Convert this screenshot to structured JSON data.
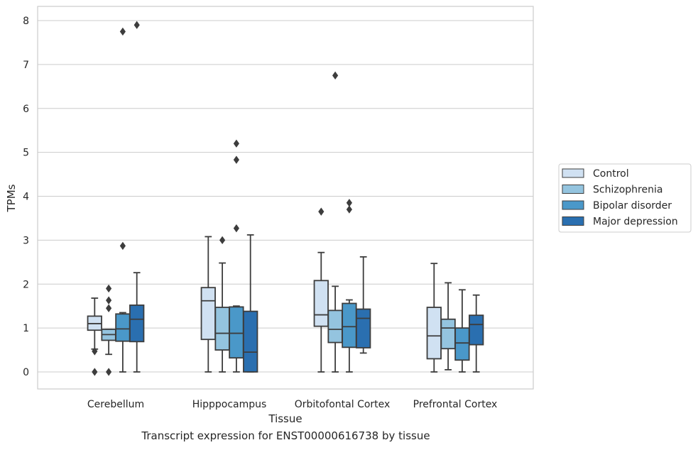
{
  "caption": "Transcript expression for ENST00000616738 by tissue",
  "chart_data": {
    "type": "box",
    "xlabel": "Tissue",
    "ylabel": "TPMs",
    "ylim": [
      -0.38,
      8.3
    ],
    "yticks": [
      0,
      1,
      2,
      3,
      4,
      5,
      6,
      7,
      8
    ],
    "grid": true,
    "legend_position": "right",
    "categories": [
      "Cerebellum",
      "Hipppocampus",
      "Orbitofontal Cortex",
      "Prefrontal Cortex"
    ],
    "series": [
      {
        "name": "Control",
        "color": "#d0e1f2",
        "boxes": [
          {
            "whislo": 0.52,
            "q1": 0.95,
            "med": 1.1,
            "q3": 1.27,
            "whishi": 1.68,
            "fliers": [
              0.47,
              0.0
            ]
          },
          {
            "whislo": 0.0,
            "q1": 0.74,
            "med": 1.62,
            "q3": 1.92,
            "whishi": 3.08,
            "fliers": []
          },
          {
            "whislo": 0.0,
            "q1": 1.04,
            "med": 1.3,
            "q3": 2.08,
            "whishi": 2.72,
            "fliers": [
              3.65
            ]
          },
          {
            "whislo": 0.0,
            "q1": 0.3,
            "med": 0.82,
            "q3": 1.47,
            "whishi": 2.47,
            "fliers": []
          }
        ]
      },
      {
        "name": "Schizophrenia",
        "color": "#94c4df",
        "boxes": [
          {
            "whislo": 0.4,
            "q1": 0.72,
            "med": 0.85,
            "q3": 0.97,
            "whishi": 0.97,
            "fliers": [
              0.0,
              1.45,
              1.63,
              1.9
            ]
          },
          {
            "whislo": 0.0,
            "q1": 0.5,
            "med": 0.88,
            "q3": 1.47,
            "whishi": 2.48,
            "fliers": [
              3.0
            ]
          },
          {
            "whislo": 0.0,
            "q1": 0.67,
            "med": 0.97,
            "q3": 1.4,
            "whishi": 1.95,
            "fliers": [
              6.75
            ]
          },
          {
            "whislo": 0.05,
            "q1": 0.53,
            "med": 1.0,
            "q3": 1.2,
            "whishi": 2.03,
            "fliers": []
          }
        ]
      },
      {
        "name": "Bipolar disorder",
        "color": "#4a98c9",
        "boxes": [
          {
            "whislo": 0.0,
            "q1": 0.7,
            "med": 0.98,
            "q3": 1.32,
            "whishi": 1.35,
            "fliers": [
              2.87,
              7.75
            ]
          },
          {
            "whislo": 0.0,
            "q1": 0.32,
            "med": 0.88,
            "q3": 1.48,
            "whishi": 1.5,
            "fliers": [
              3.27,
              4.83,
              5.2
            ]
          },
          {
            "whislo": 0.0,
            "q1": 0.56,
            "med": 1.03,
            "q3": 1.56,
            "whishi": 1.64,
            "fliers": [
              3.7,
              3.85
            ]
          },
          {
            "whislo": 0.0,
            "q1": 0.27,
            "med": 0.66,
            "q3": 1.0,
            "whishi": 1.87,
            "fliers": []
          }
        ]
      },
      {
        "name": "Major depression",
        "color": "#2a6fb0",
        "boxes": [
          {
            "whislo": 0.0,
            "q1": 0.69,
            "med": 1.2,
            "q3": 1.52,
            "whishi": 2.26,
            "fliers": [
              7.9
            ]
          },
          {
            "whislo": 0.0,
            "q1": 0.0,
            "med": 0.45,
            "q3": 1.38,
            "whishi": 3.12,
            "fliers": []
          },
          {
            "whislo": 0.43,
            "q1": 0.55,
            "med": 1.22,
            "q3": 1.43,
            "whishi": 2.62,
            "fliers": []
          },
          {
            "whislo": 0.0,
            "q1": 0.62,
            "med": 1.08,
            "q3": 1.29,
            "whishi": 1.75,
            "fliers": []
          }
        ]
      }
    ]
  }
}
